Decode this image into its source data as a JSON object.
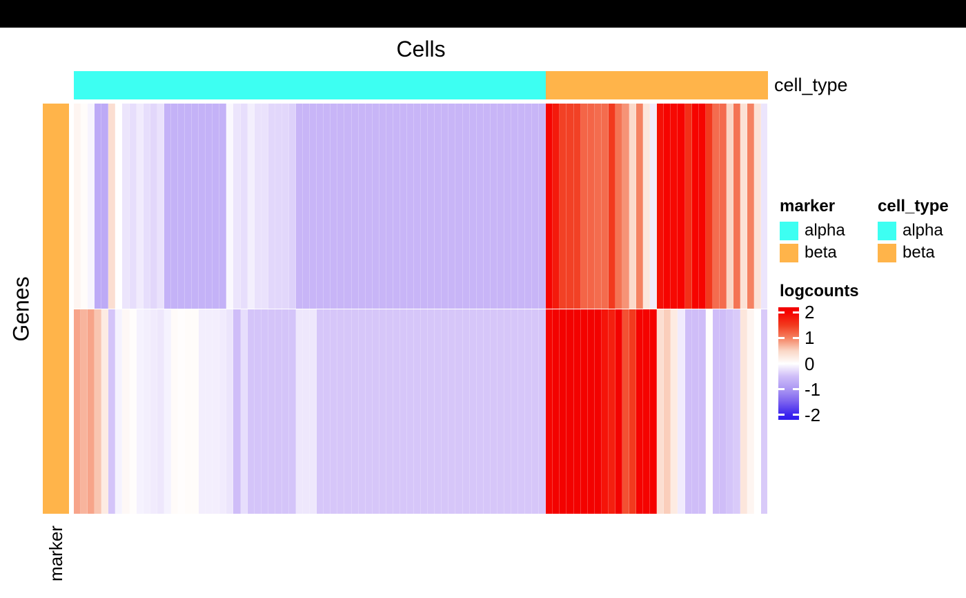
{
  "window": {
    "top_bar_color": "#000000",
    "background": "#FFFFFF"
  },
  "annotation_colors": {
    "alpha": "#3DFFF2",
    "beta": "#FFB44A"
  },
  "legend": {
    "marker": {
      "title": "marker",
      "items": [
        {
          "label": "alpha",
          "color": "#3DFFF2"
        },
        {
          "label": "beta",
          "color": "#FFB44A"
        }
      ]
    },
    "cell_type": {
      "title": "cell_type",
      "items": [
        {
          "label": "alpha",
          "color": "#3DFFF2"
        },
        {
          "label": "beta",
          "color": "#FFB44A"
        }
      ]
    },
    "logcounts": {
      "title": "logcounts"
    }
  },
  "chart_data": {
    "type": "heatmap",
    "title": "Cells",
    "xlabel": "Cells",
    "ylabel": "Genes",
    "n_columns": 100,
    "n_rows": 2,
    "rows": [
      [
        0.12,
        0.04,
        -0.08,
        -0.75,
        -0.75,
        0.4,
        0,
        -0.2,
        -0.25,
        -0.15,
        -0.25,
        -0.3,
        -0.22,
        -0.65,
        -0.65,
        -0.65,
        -0.65,
        -0.65,
        -0.65,
        -0.65,
        -0.65,
        -0.65,
        -0.05,
        -0.2,
        -0.25,
        -0.12,
        -0.22,
        -0.22,
        -0.3,
        -0.3,
        -0.3,
        -0.35,
        -0.6,
        -0.6,
        -0.6,
        -0.6,
        -0.6,
        -0.6,
        -0.6,
        -0.6,
        -0.6,
        -0.6,
        -0.6,
        -0.6,
        -0.6,
        -0.6,
        -0.6,
        -0.6,
        -0.6,
        -0.6,
        -0.6,
        -0.6,
        -0.6,
        -0.6,
        -0.6,
        -0.6,
        -0.6,
        -0.6,
        -0.6,
        -0.6,
        -0.6,
        -0.6,
        -0.6,
        -0.6,
        -0.6,
        -0.6,
        -0.6,
        -0.6,
        2.0,
        1.8,
        1.45,
        1.45,
        1.45,
        1.2,
        1.2,
        1.15,
        1.15,
        1.5,
        1.1,
        0.9,
        0.45,
        1.0,
        0.3,
        -0.15,
        1.9,
        2.0,
        1.95,
        2.0,
        1.6,
        2.0,
        2.0,
        1.5,
        1.15,
        1.15,
        0.5,
        1.1,
        0.35,
        1.0,
        0.35,
        -0.2
      ],
      [
        0.8,
        0.7,
        0.8,
        0.6,
        0.25,
        -0.45,
        -0.1,
        0.08,
        0.03,
        -0.1,
        -0.12,
        -0.15,
        -0.18,
        -0.1,
        0.05,
        0.02,
        0.04,
        0.04,
        -0.13,
        -0.13,
        -0.13,
        -0.15,
        -0.2,
        -0.5,
        -0.25,
        -0.45,
        -0.45,
        -0.45,
        -0.45,
        -0.45,
        -0.45,
        -0.45,
        -0.18,
        -0.18,
        -0.18,
        -0.43,
        -0.43,
        -0.43,
        -0.43,
        -0.43,
        -0.43,
        -0.43,
        -0.43,
        -0.43,
        -0.43,
        -0.43,
        -0.43,
        -0.43,
        -0.43,
        -0.43,
        -0.43,
        -0.43,
        -0.43,
        -0.43,
        -0.43,
        -0.43,
        -0.43,
        -0.43,
        -0.43,
        -0.43,
        -0.43,
        -0.43,
        -0.43,
        -0.43,
        -0.43,
        -0.43,
        -0.43,
        -0.43,
        2.0,
        2.1,
        2.1,
        2.1,
        2.1,
        2.1,
        2.1,
        2.1,
        1.85,
        1.75,
        2.1,
        1.35,
        1.5,
        2.05,
        2.05,
        2.05,
        0.4,
        0.55,
        0.25,
        -0.15,
        -0.5,
        -0.5,
        -0.5,
        0.02,
        -0.5,
        -0.5,
        -0.45,
        -0.4,
        0.3,
        0.12,
        0,
        -0.4
      ]
    ],
    "column_annotation": {
      "name": "cell_type",
      "groups": [
        {
          "label": "alpha",
          "color": "#3DFFF2",
          "n": 68
        },
        {
          "label": "beta",
          "color": "#FFB44A",
          "n": 32
        }
      ]
    },
    "row_annotation": {
      "name": "marker",
      "groups": [
        {
          "label": "beta",
          "color": "#FFB44A",
          "n": 2
        }
      ]
    },
    "colorscale": {
      "name": "logcounts",
      "vmin": -2.2,
      "vmax": 2.2,
      "tick_values": [
        2,
        1,
        0,
        -1,
        -2
      ],
      "tick_labels": [
        "2",
        "1",
        "0",
        "-1",
        "-2"
      ],
      "anchors": [
        {
          "v": 2.2,
          "c": "#F00000"
        },
        {
          "v": 2.0,
          "c": "#F60400"
        },
        {
          "v": 1.5,
          "c": "#F23A1E"
        },
        {
          "v": 1.0,
          "c": "#F58262"
        },
        {
          "v": 0.5,
          "c": "#FAD6C5"
        },
        {
          "v": 0.0,
          "c": "#FFFFFF"
        },
        {
          "v": -0.5,
          "c": "#CFBDF8"
        },
        {
          "v": -1.0,
          "c": "#AB97F3"
        },
        {
          "v": -1.5,
          "c": "#7B61EF"
        },
        {
          "v": -2.0,
          "c": "#3B24EE"
        },
        {
          "v": -2.2,
          "c": "#2F1BEE"
        }
      ]
    }
  }
}
